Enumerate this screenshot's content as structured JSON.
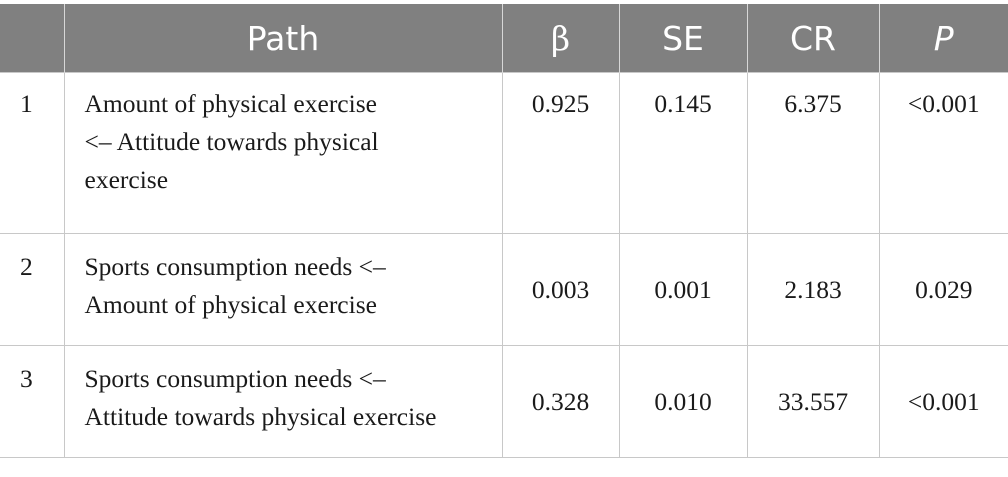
{
  "table": {
    "headers": {
      "index": "",
      "path": "Path",
      "beta": "β",
      "se": "SE",
      "cr": "CR",
      "p": "P"
    },
    "rows": [
      {
        "index": "1",
        "path_lines": [
          "Amount of physical exercise",
          "<– Attitude towards physical",
          "exercise"
        ],
        "beta": "0.925",
        "se": "0.145",
        "cr": "6.375",
        "p": "<0.001"
      },
      {
        "index": "2",
        "path_lines": [
          "Sports consumption needs <–",
          "Amount of physical exercise"
        ],
        "beta": "0.003",
        "se": "0.001",
        "cr": "2.183",
        "p": "0.029"
      },
      {
        "index": "3",
        "path_lines": [
          "Sports consumption needs <–",
          "Attitude towards physical exercise"
        ],
        "beta": "0.328",
        "se": "0.010",
        "cr": "33.557",
        "p": "<0.001"
      }
    ]
  },
  "colors": {
    "header_bg": "#808080",
    "header_text": "#ffffff",
    "border": "#c8c8c8"
  }
}
